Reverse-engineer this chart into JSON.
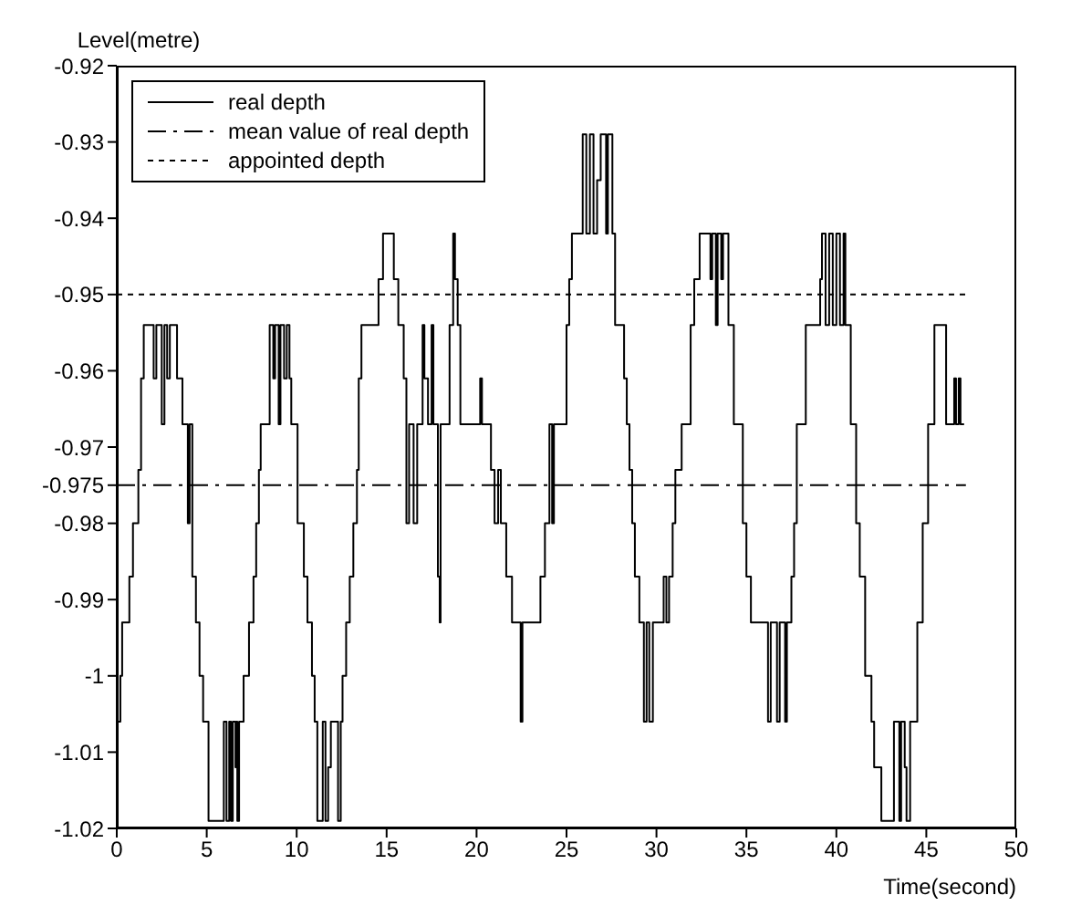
{
  "chart_data": {
    "type": "step",
    "xlabel": "Time(second)",
    "ylabel": "Level(metre)",
    "xlim": [
      0,
      50
    ],
    "xticks": [
      0,
      5,
      10,
      15,
      20,
      25,
      30,
      35,
      40,
      45,
      50
    ],
    "ylim": [
      -1.02,
      -0.92
    ],
    "yticks": [
      -1.02,
      -1.01,
      -1,
      -0.99,
      -0.98,
      -0.975,
      -0.97,
      -0.96,
      -0.95,
      -0.94,
      -0.93,
      -0.92
    ],
    "grid": false,
    "legend": "top left",
    "series": [
      {
        "name": "real depth",
        "type": "step",
        "color": "#000000",
        "line_style": "solid",
        "x": [
          0,
          0.2,
          0.3,
          0.7,
          0.9,
          1.2,
          1.35,
          1.5,
          2.05,
          2.2,
          2.5,
          2.65,
          2.8,
          2.95,
          3.35,
          3.65,
          3.95,
          4.05,
          4.2,
          4.4,
          4.6,
          4.8,
          5.1,
          5.95,
          6.1,
          6.25,
          6.35,
          6.45,
          6.6,
          6.65,
          6.7,
          6.8,
          7.05,
          7.35,
          7.6,
          7.75,
          7.9,
          8,
          8.5,
          8.7,
          8.8,
          9,
          9.1,
          9.3,
          9.45,
          9.6,
          9.7,
          10.05,
          10.4,
          10.6,
          10.85,
          11,
          11.15,
          11.45,
          11.6,
          11.75,
          11.9,
          12.3,
          12.45,
          12.55,
          12.75,
          12.95,
          13.15,
          13.35,
          13.45,
          13.6,
          14.55,
          14.8,
          15.4,
          15.65,
          15.95,
          16.1,
          16.25,
          16.5,
          16.7,
          17,
          17.1,
          17.3,
          17.5,
          17.6,
          17.85,
          17.95,
          18,
          18.5,
          18.7,
          18.8,
          18.95,
          19.1,
          20.2,
          20.3,
          20.8,
          21,
          21.2,
          21.35,
          21.65,
          21.97,
          22.45,
          22.55,
          23.55,
          23.8,
          24.05,
          24.2,
          24.3,
          25,
          25.15,
          25.3,
          25.9,
          26.1,
          26.3,
          26.5,
          26.7,
          26.9,
          27.2,
          27.3,
          27.55,
          27.7,
          28.2,
          28.35,
          28.5,
          28.65,
          28.8,
          29.05,
          29.3,
          29.45,
          29.6,
          29.8,
          30.4,
          30.55,
          30.7,
          30.9,
          31.05,
          31.4,
          31.9,
          32.1,
          32.4,
          33,
          33.1,
          33.3,
          33.4,
          33.6,
          33.7,
          34,
          34.3,
          34.8,
          35,
          35.25,
          36.2,
          36.35,
          36.7,
          36.85,
          37.15,
          37.25,
          37.5,
          37.65,
          37.8,
          38.3,
          39.1,
          39.2,
          39.4,
          39.6,
          39.8,
          40,
          40.2,
          40.4,
          40.5,
          40.8,
          41.1,
          41.3,
          41.6,
          41.95,
          42.1,
          42.5,
          43.2,
          43.5,
          43.6,
          43.8,
          43.9,
          44.1,
          44.5,
          44.8,
          45.1,
          45.45,
          46.1,
          46.55,
          46.65,
          46.8,
          46.9,
          47.1
        ],
        "values": [
          -1.006,
          -1,
          -0.993,
          -0.987,
          -0.98,
          -0.973,
          -0.961,
          -0.954,
          -0.961,
          -0.954,
          -0.967,
          -0.954,
          -0.961,
          -0.954,
          -0.961,
          -0.967,
          -0.98,
          -0.967,
          -0.987,
          -0.993,
          -1,
          -1.006,
          -1.019,
          -1.006,
          -1.019,
          -1.006,
          -1.019,
          -1.006,
          -1.012,
          -1.006,
          -1.019,
          -1.006,
          -1,
          -0.993,
          -0.987,
          -0.98,
          -0.973,
          -0.967,
          -0.954,
          -0.961,
          -0.954,
          -0.967,
          -0.954,
          -0.961,
          -0.954,
          -0.961,
          -0.967,
          -0.98,
          -0.987,
          -0.993,
          -1,
          -1.006,
          -1.019,
          -1.006,
          -1.019,
          -1.012,
          -1.006,
          -1.019,
          -1.006,
          -1,
          -0.993,
          -0.987,
          -0.98,
          -0.973,
          -0.961,
          -0.954,
          -0.948,
          -0.942,
          -0.948,
          -0.954,
          -0.961,
          -0.98,
          -0.967,
          -0.98,
          -0.967,
          -0.954,
          -0.961,
          -0.967,
          -0.954,
          -0.967,
          -0.987,
          -0.993,
          -0.967,
          -0.954,
          -0.942,
          -0.948,
          -0.954,
          -0.967,
          -0.961,
          -0.967,
          -0.973,
          -0.98,
          -0.973,
          -0.98,
          -0.987,
          -0.993,
          -1.006,
          -0.993,
          -0.987,
          -0.98,
          -0.967,
          -0.98,
          -0.967,
          -0.954,
          -0.948,
          -0.942,
          -0.929,
          -0.942,
          -0.929,
          -0.942,
          -0.935,
          -0.929,
          -0.942,
          -0.929,
          -0.942,
          -0.954,
          -0.961,
          -0.967,
          -0.973,
          -0.98,
          -0.987,
          -0.993,
          -1.006,
          -0.993,
          -1.006,
          -0.993,
          -0.987,
          -0.993,
          -0.987,
          -0.98,
          -0.973,
          -0.967,
          -0.954,
          -0.948,
          -0.942,
          -0.948,
          -0.942,
          -0.954,
          -0.942,
          -0.948,
          -0.942,
          -0.954,
          -0.967,
          -0.98,
          -0.987,
          -0.993,
          -1.006,
          -0.993,
          -1.006,
          -0.993,
          -1.006,
          -0.993,
          -0.987,
          -0.98,
          -0.967,
          -0.954,
          -0.948,
          -0.942,
          -0.954,
          -0.942,
          -0.954,
          -0.942,
          -0.954,
          -0.942,
          -0.954,
          -0.967,
          -0.98,
          -0.987,
          -1,
          -1.006,
          -1.012,
          -1.019,
          -1.006,
          -1.019,
          -1.006,
          -1.012,
          -1.019,
          -1.006,
          -0.993,
          -0.98,
          -0.967,
          -0.954,
          -0.967,
          -0.961,
          -0.967,
          -0.961,
          -0.967,
          -0.967
        ]
      },
      {
        "name": "mean value of real depth",
        "type": "line",
        "color": "#000000",
        "line_style": "dashed",
        "x": [
          0,
          47.2
        ],
        "values": [
          -0.975,
          -0.975
        ]
      },
      {
        "name": "appointed depth",
        "type": "line",
        "color": "#000000",
        "line_style": "dotted",
        "x": [
          0,
          47.2
        ],
        "values": [
          -0.95,
          -0.95
        ]
      }
    ]
  }
}
